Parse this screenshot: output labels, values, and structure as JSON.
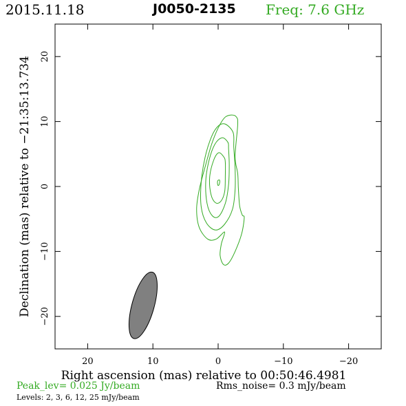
{
  "header": {
    "date": "2015.11.18",
    "source": "J0050-2135",
    "freq": "Freq: 7.6 GHz"
  },
  "footer": {
    "peak": "Peak_lev=  0.025 Jy/beam",
    "rms": "Rms_noise=   0.3 mJy/beam",
    "levels": "Levels:   2,   3,   6,  12,  25 mJy/beam"
  },
  "colors": {
    "contour": "#33aa22",
    "beam_fill": "#808080",
    "axes": "#000000"
  },
  "chart_data": {
    "type": "contour",
    "title": "J0050-2135",
    "xlabel": "Right ascension (mas) relative to 00:50:46.4981",
    "ylabel": "Declination (mas) relative to −21:35:13.734",
    "xlim": [
      25,
      -25
    ],
    "ylim": [
      -25,
      25
    ],
    "x_ticks": [
      20,
      10,
      0,
      -10,
      -20
    ],
    "x_tick_labels": [
      "20",
      "10",
      "0",
      "−10",
      "−20"
    ],
    "y_ticks": [
      20,
      10,
      0,
      -10,
      -20
    ],
    "y_tick_labels": [
      "20",
      "10",
      "0",
      "−10",
      "−20"
    ],
    "peak_jy_per_beam": 0.025,
    "rms_noise_mjy_per_beam": 0.3,
    "contour_levels_mjy": [
      2,
      3,
      6,
      12,
      25
    ],
    "contours": [
      {
        "level_mjy": 2,
        "points": [
          [
            -3,
            9.5
          ],
          [
            -2.8,
            10.7
          ],
          [
            -2,
            11
          ],
          [
            -1,
            10.6
          ],
          [
            0,
            9
          ],
          [
            1,
            6.5
          ],
          [
            2,
            3
          ],
          [
            2.9,
            -0.5
          ],
          [
            3.3,
            -3.5
          ],
          [
            2.9,
            -6.3
          ],
          [
            1.6,
            -8.1
          ],
          [
            0.3,
            -8.1
          ],
          [
            -1,
            -7
          ],
          [
            -0.5,
            -8.8
          ],
          [
            -0.3,
            -10.6
          ],
          [
            -0.8,
            -12
          ],
          [
            -1.6,
            -11.8
          ],
          [
            -2.6,
            -10
          ],
          [
            -3.6,
            -7.3
          ],
          [
            -4,
            -4.8
          ],
          [
            -3.7,
            -4.4
          ],
          [
            -3.3,
            -3
          ],
          [
            -3.1,
            -0.3
          ],
          [
            -3,
            2
          ],
          [
            -2.6,
            4.6
          ]
        ]
      },
      {
        "level_mjy": 3,
        "points": [
          [
            -2.3,
            8.3
          ],
          [
            -1.1,
            9.6
          ],
          [
            0,
            9.3
          ],
          [
            1,
            7.7
          ],
          [
            2,
            4.5
          ],
          [
            2.6,
            0.6
          ],
          [
            2.6,
            -3.1
          ],
          [
            1.8,
            -5.6
          ],
          [
            0.4,
            -6.7
          ],
          [
            -1,
            -5.8
          ],
          [
            -2.2,
            -3.5
          ],
          [
            -2.6,
            -0.5
          ],
          [
            -2.6,
            2.8
          ],
          [
            -2.4,
            6
          ]
        ]
      },
      {
        "level_mjy": 6,
        "points": [
          [
            -1.5,
            6.8
          ],
          [
            -0.6,
            7.5
          ],
          [
            0.5,
            6.5
          ],
          [
            1.4,
            4
          ],
          [
            1.9,
            0.8
          ],
          [
            1.7,
            -2.6
          ],
          [
            0.9,
            -4.5
          ],
          [
            -0.1,
            -4.6
          ],
          [
            -1.1,
            -2.6
          ],
          [
            -1.6,
            0.3
          ],
          [
            -1.7,
            3.3
          ],
          [
            -1.6,
            5.8
          ]
        ]
      },
      {
        "level_mjy": 12,
        "points": [
          [
            -0.9,
            4.5
          ],
          [
            -0.1,
            5.2
          ],
          [
            0.7,
            4
          ],
          [
            1.3,
            1.4
          ],
          [
            1.1,
            -1.2
          ],
          [
            0.4,
            -2.5
          ],
          [
            -0.4,
            -2.3
          ],
          [
            -1,
            -0.8
          ],
          [
            -1.1,
            1.7
          ],
          [
            -1.1,
            3.7
          ]
        ]
      },
      {
        "level_mjy": 25,
        "points": [
          [
            -0.2,
            1
          ],
          [
            0.05,
            0.9
          ],
          [
            0.1,
            0.5
          ],
          [
            0,
            0.15
          ],
          [
            -0.15,
            0.3
          ],
          [
            -0.25,
            0.7
          ]
        ]
      }
    ],
    "beam": {
      "center_x": 11.5,
      "center_y": -18.3,
      "major_mas": 10.6,
      "minor_mas": 3.4,
      "position_angle_deg": 15.5
    },
    "grid": false,
    "legend": "none"
  }
}
